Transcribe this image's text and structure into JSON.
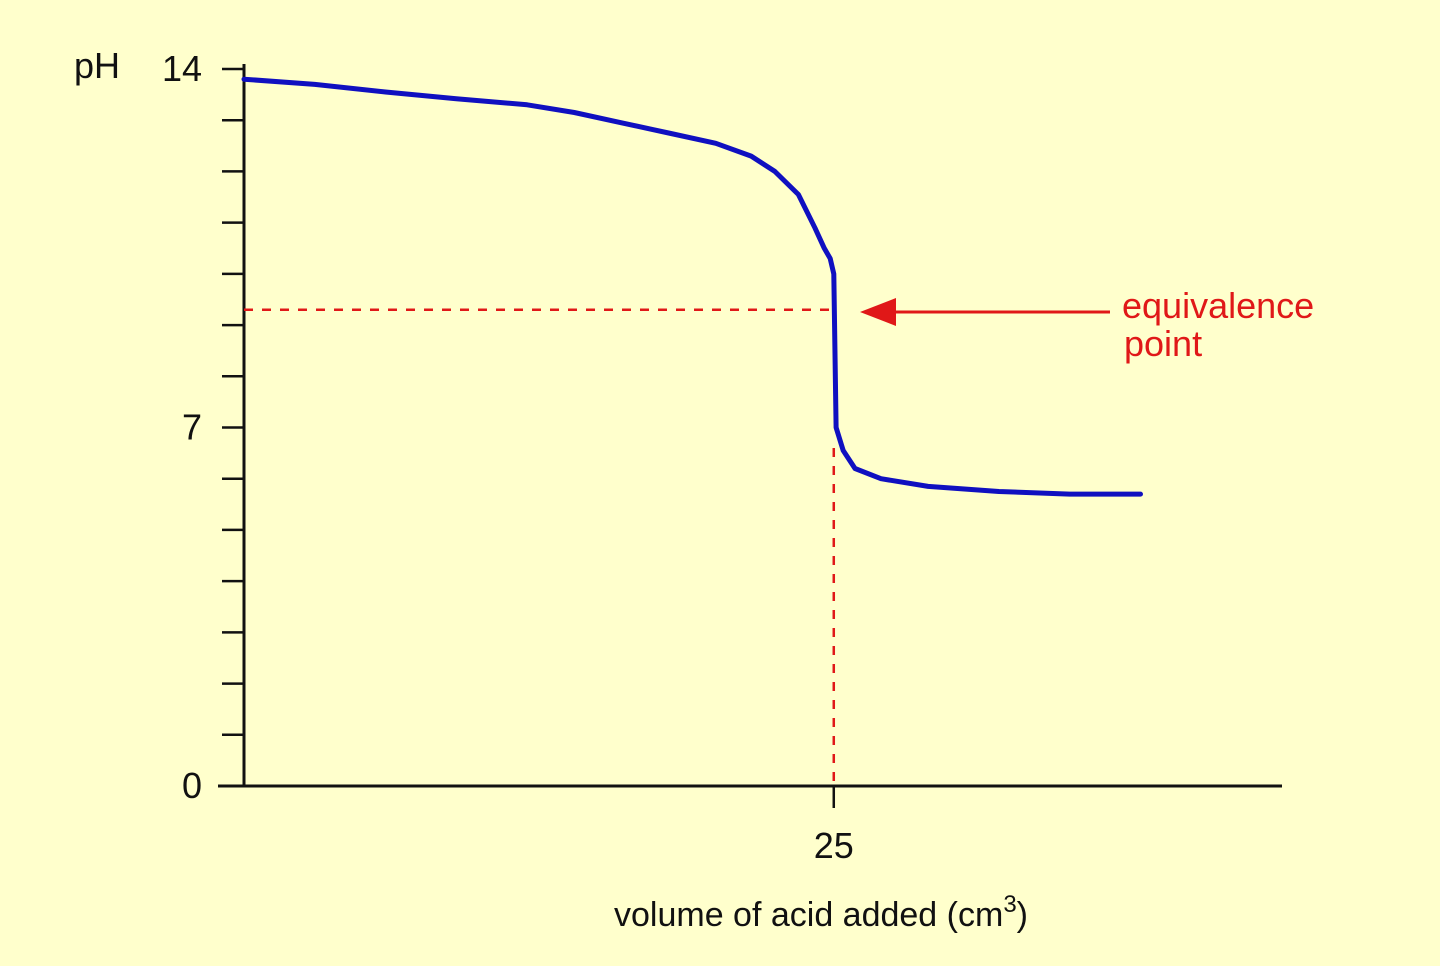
{
  "colors": {
    "background": "#ffffcc",
    "axis": "#111111",
    "curve": "#1010c0",
    "annotation": "#e01818"
  },
  "chart_data": {
    "type": "line",
    "title": "",
    "ylabel": "pH",
    "xlabel": "volume of acid added (cm",
    "xlabel_superscript": "3",
    "xlabel_suffix": ")",
    "xlim": [
      0,
      44
    ],
    "ylim": [
      0,
      14
    ],
    "y_major_ticks": [
      {
        "value": 0,
        "label": "0"
      },
      {
        "value": 7,
        "label": "7"
      },
      {
        "value": 14,
        "label": "14"
      }
    ],
    "y_minor_tick_step": 1,
    "x_ticks": [
      {
        "value": 25,
        "label": "25"
      }
    ],
    "grid": false,
    "series": [
      {
        "x": [
          0,
          3,
          6,
          9,
          12,
          14,
          16,
          18,
          20,
          21.5,
          22.5,
          23.5,
          24.2,
          24.6,
          24.85,
          25.0,
          25.1,
          25.4,
          25.9,
          27,
          29,
          32,
          35,
          38
        ],
        "y": [
          13.8,
          13.7,
          13.55,
          13.42,
          13.3,
          13.15,
          12.95,
          12.75,
          12.55,
          12.3,
          12.0,
          11.55,
          10.9,
          10.5,
          10.3,
          10.0,
          7.0,
          6.55,
          6.2,
          6.0,
          5.85,
          5.75,
          5.7,
          5.7
        ]
      }
    ],
    "annotations": [
      {
        "text": "equivalence",
        "x": 25,
        "y": 9.3
      },
      {
        "text": "point",
        "x": 25,
        "y": 9.3
      }
    ]
  }
}
